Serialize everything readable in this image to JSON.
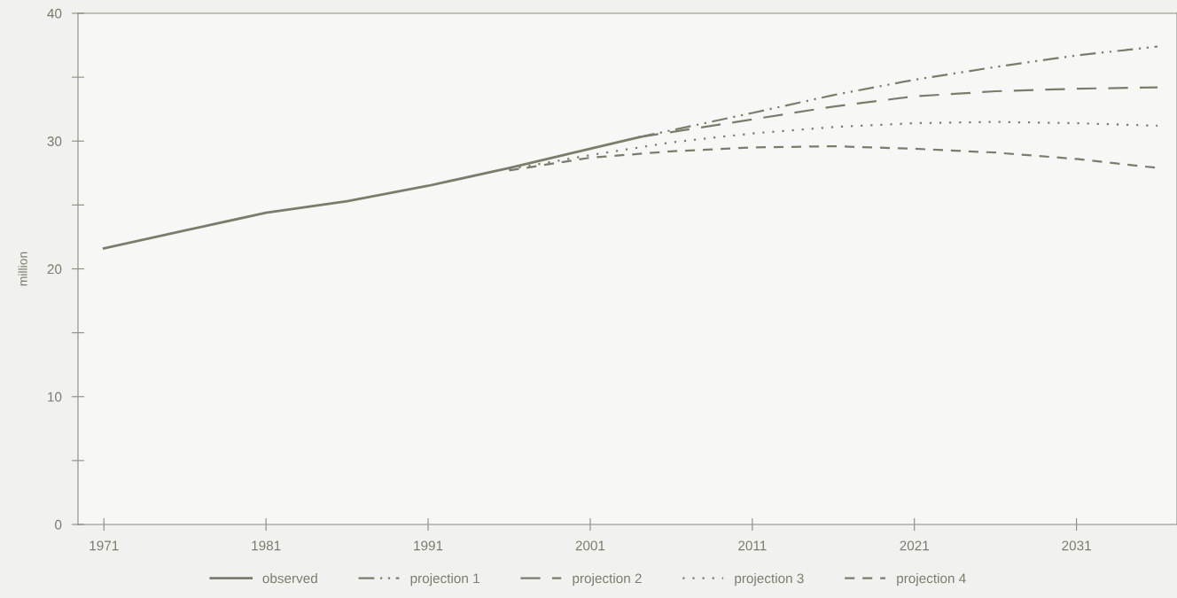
{
  "chart_data": {
    "type": "line",
    "ylabel": "million",
    "xlim": [
      1969.4,
      2037.2
    ],
    "xticks": [
      1971,
      1981,
      1991,
      2001,
      2011,
      2021,
      2031
    ],
    "ylim": [
      0,
      40
    ],
    "yticks": [
      0,
      {
        "value": 5,
        "label": null
      },
      10,
      {
        "value": 15,
        "label": null
      },
      20,
      {
        "value": 25,
        "label": null
      },
      30,
      {
        "value": 35,
        "label": null
      },
      40
    ],
    "grid": false,
    "legend": "bottom",
    "marker": "none",
    "series": [
      {
        "name": "observed",
        "color": "#7a7d6c",
        "line_style": "solid",
        "x": [
          1971,
          1976,
          1981,
          1986,
          1991,
          1996,
          2001,
          2004
        ],
        "values": [
          21.6,
          23.0,
          24.4,
          25.3,
          26.5,
          27.9,
          29.4,
          30.3
        ]
      },
      {
        "name": "projection 1",
        "color": "#7a7d6c",
        "line_style": "dashdotdot",
        "x": [
          2004,
          2011,
          2016,
          2021,
          2026,
          2031,
          2036
        ],
        "values": [
          30.3,
          32.2,
          33.6,
          34.8,
          35.8,
          36.7,
          37.4
        ]
      },
      {
        "name": "projection 2",
        "color": "#7a7d6c",
        "line_style": "longdashed",
        "x": [
          2004,
          2011,
          2016,
          2021,
          2026,
          2031,
          2036
        ],
        "values": [
          30.3,
          31.7,
          32.7,
          33.5,
          33.9,
          34.1,
          34.2
        ]
      },
      {
        "name": "projection 3",
        "color": "#7a7d6c",
        "line_style": "dotted",
        "x": [
          1996,
          2001,
          2006,
          2011,
          2016,
          2021,
          2026,
          2031,
          2036
        ],
        "values": [
          27.8,
          28.9,
          29.9,
          30.6,
          31.1,
          31.4,
          31.5,
          31.4,
          31.2
        ]
      },
      {
        "name": "projection 4",
        "color": "#7a7d6c",
        "line_style": "dashed",
        "x": [
          1996,
          2001,
          2006,
          2011,
          2016,
          2021,
          2026,
          2031,
          2036
        ],
        "values": [
          27.7,
          28.7,
          29.2,
          29.5,
          29.6,
          29.4,
          29.1,
          28.6,
          27.9
        ]
      }
    ]
  }
}
